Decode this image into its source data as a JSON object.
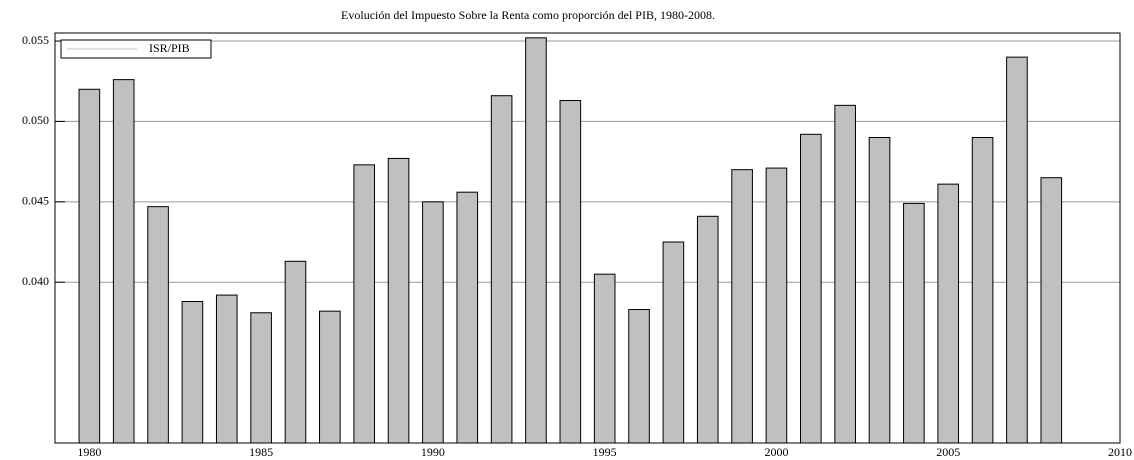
{
  "chart_data": {
    "type": "bar",
    "title": "Evolución del Impuesto Sobre la Renta como proporción del PIB, 1980-2008.",
    "x": [
      1980,
      1981,
      1982,
      1983,
      1984,
      1985,
      1986,
      1987,
      1988,
      1989,
      1990,
      1991,
      1992,
      1993,
      1994,
      1995,
      1996,
      1997,
      1998,
      1999,
      2000,
      2001,
      2002,
      2003,
      2004,
      2005,
      2006,
      2007,
      2008
    ],
    "series": [
      {
        "name": "ISR/PIB",
        "color": "#c0c0c0",
        "values": [
          0.052,
          0.0526,
          0.0447,
          0.0388,
          0.0392,
          0.0381,
          0.0413,
          0.0382,
          0.0473,
          0.0477,
          0.045,
          0.0456,
          0.0516,
          0.0552,
          0.0513,
          0.0405,
          0.0383,
          0.0425,
          0.0441,
          0.047,
          0.0471,
          0.0492,
          0.051,
          0.049,
          0.0449,
          0.0461,
          0.049,
          0.054,
          0.0465
        ]
      }
    ],
    "xlim": [
      1979,
      2010
    ],
    "xticks": [
      1980,
      1985,
      1990,
      1995,
      2000,
      2005,
      2010
    ],
    "ylim": [
      0.03,
      0.0555
    ],
    "yticks": [
      {
        "value": 0.04,
        "label": "0.040"
      },
      0.045,
      {
        "value": 0.05,
        "label": "0.050"
      },
      0.055
    ],
    "grid": true,
    "legend": "upper left"
  }
}
